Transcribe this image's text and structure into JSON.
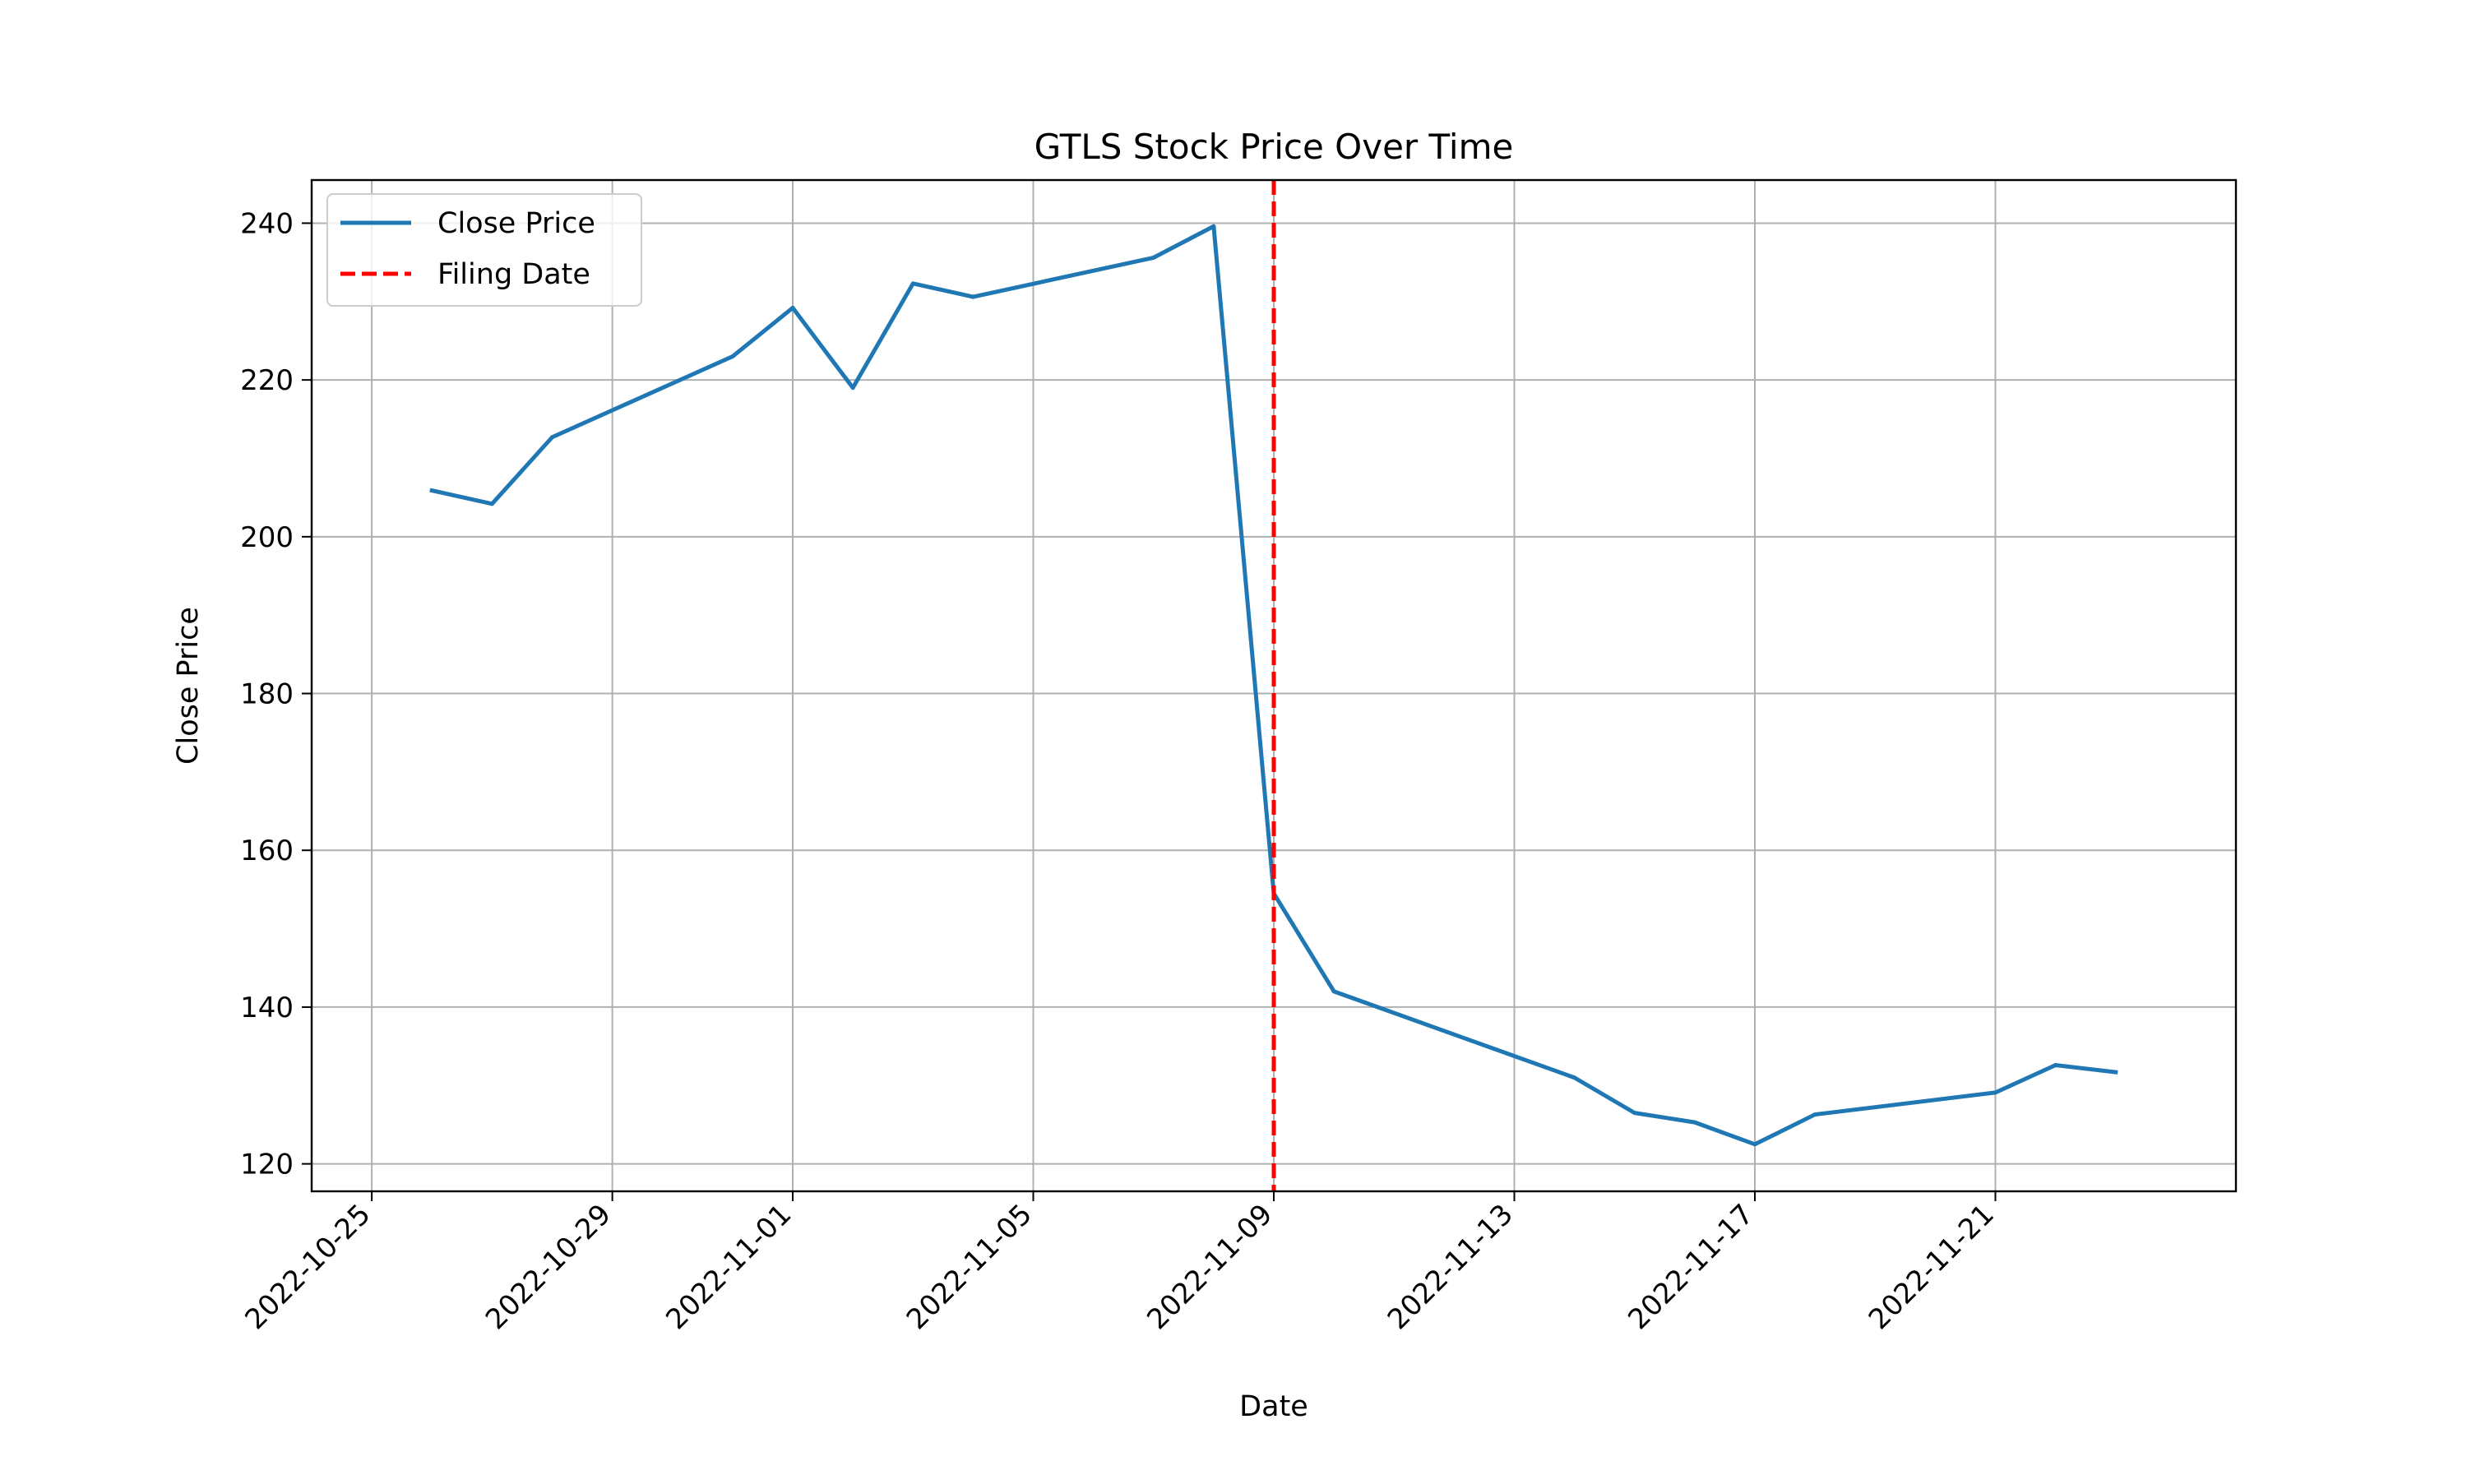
{
  "chart_data": {
    "type": "line",
    "title": "GTLS Stock Price Over Time",
    "xlabel": "Date",
    "ylabel": "Close Price",
    "xlim": [
      "2022-10-24",
      "2022-11-25"
    ],
    "ylim": [
      116.5,
      245.5
    ],
    "x_ticks": [
      "2022-10-25",
      "2022-10-29",
      "2022-11-01",
      "2022-11-05",
      "2022-11-09",
      "2022-11-13",
      "2022-11-17",
      "2022-11-21"
    ],
    "y_ticks": [
      120,
      140,
      160,
      180,
      200,
      220,
      240
    ],
    "grid": true,
    "legend_position": "upper-left",
    "series": [
      {
        "name": "Close Price",
        "color": "#1f77b4",
        "style": "solid",
        "points": [
          {
            "x": "2022-10-26",
            "y": 205.9
          },
          {
            "x": "2022-10-27",
            "y": 204.2
          },
          {
            "x": "2022-10-28",
            "y": 212.7
          },
          {
            "x": "2022-10-31",
            "y": 223.0
          },
          {
            "x": "2022-11-01",
            "y": 229.2
          },
          {
            "x": "2022-11-02",
            "y": 219.0
          },
          {
            "x": "2022-11-03",
            "y": 232.3
          },
          {
            "x": "2022-11-04",
            "y": 230.6
          },
          {
            "x": "2022-11-07",
            "y": 235.6
          },
          {
            "x": "2022-11-08",
            "y": 239.6
          },
          {
            "x": "2022-11-09",
            "y": 154.5
          },
          {
            "x": "2022-11-10",
            "y": 142.0
          },
          {
            "x": "2022-11-14",
            "y": 131.0
          },
          {
            "x": "2022-11-15",
            "y": 126.5
          },
          {
            "x": "2022-11-16",
            "y": 125.3
          },
          {
            "x": "2022-11-17",
            "y": 122.5
          },
          {
            "x": "2022-11-18",
            "y": 126.3
          },
          {
            "x": "2022-11-21",
            "y": 129.1
          },
          {
            "x": "2022-11-22",
            "y": 132.6
          },
          {
            "x": "2022-11-23",
            "y": 131.7
          }
        ]
      }
    ],
    "reference_lines": [
      {
        "name": "Filing Date",
        "x": "2022-11-09",
        "color": "#ff0000",
        "style": "dashed"
      }
    ]
  }
}
